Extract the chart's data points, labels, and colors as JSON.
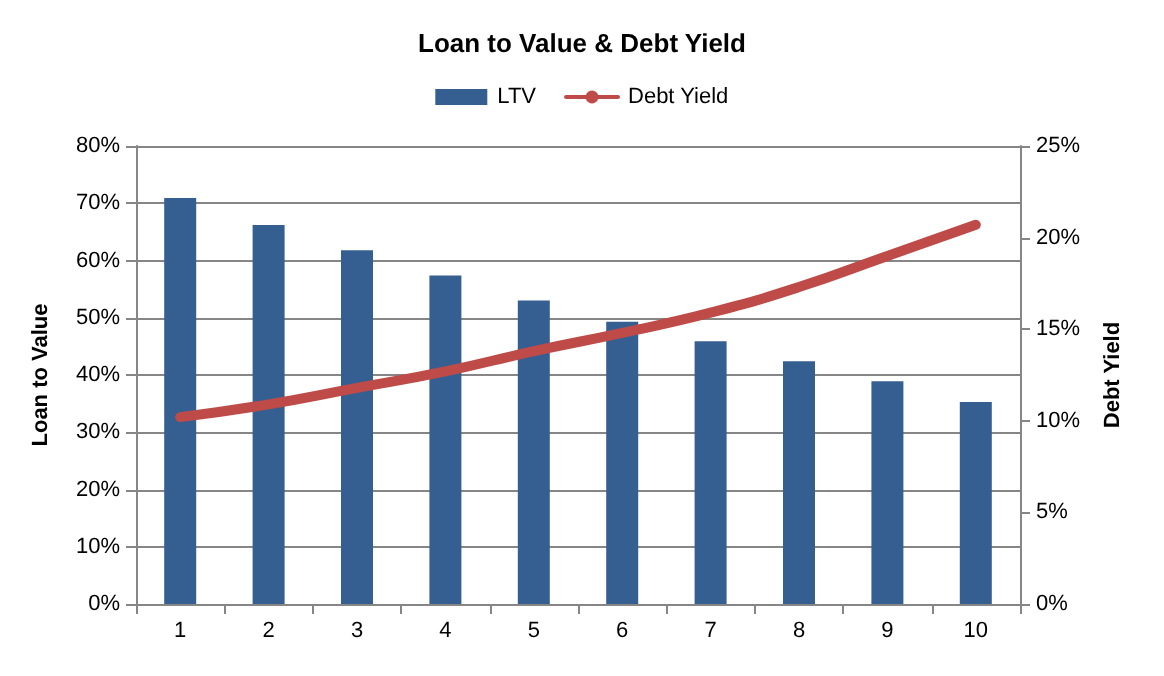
{
  "chart_data": {
    "type": "bar",
    "title": "Loan to Value & Debt Yield",
    "ylabel": "Loan to Value",
    "y2label": "Debt Yield",
    "categories": [
      "1",
      "2",
      "3",
      "4",
      "5",
      "6",
      "7",
      "8",
      "9",
      "10"
    ],
    "series": [
      {
        "name": "LTV",
        "color": "#365f91",
        "values": [
          70.9,
          66.2,
          61.8,
          57.4,
          53.0,
          49.3,
          45.9,
          42.4,
          38.9,
          35.3
        ]
      },
      {
        "name": "Debt Yield",
        "type": "line",
        "axis": "y2",
        "color": "#be4b48",
        "values": [
          10.2,
          10.9,
          11.8,
          12.7,
          13.8,
          14.8,
          15.9,
          17.3,
          19.0,
          20.7
        ]
      }
    ],
    "ylim": [
      0,
      80
    ],
    "yticks": [
      {
        "value": 0,
        "label": "0%"
      },
      {
        "value": 10,
        "label": "10%"
      },
      {
        "value": 20,
        "label": "20%"
      },
      {
        "value": 30,
        "label": "30%"
      },
      {
        "value": 40,
        "label": "40%"
      },
      {
        "value": 50,
        "label": "50%"
      },
      {
        "value": 60,
        "label": "60%"
      },
      {
        "value": 70,
        "label": "70%"
      },
      {
        "value": 80,
        "label": "80%"
      }
    ],
    "y2lim": [
      0,
      25
    ],
    "y2ticks": [
      {
        "value": 0,
        "label": "0%"
      },
      {
        "value": 5,
        "label": "5%"
      },
      {
        "value": 10,
        "label": "10%"
      },
      {
        "value": 15,
        "label": "15%"
      },
      {
        "value": 20,
        "label": "20%"
      },
      {
        "value": 25,
        "label": "25%"
      }
    ],
    "grid": "y",
    "legend": "top",
    "marker": "none"
  }
}
